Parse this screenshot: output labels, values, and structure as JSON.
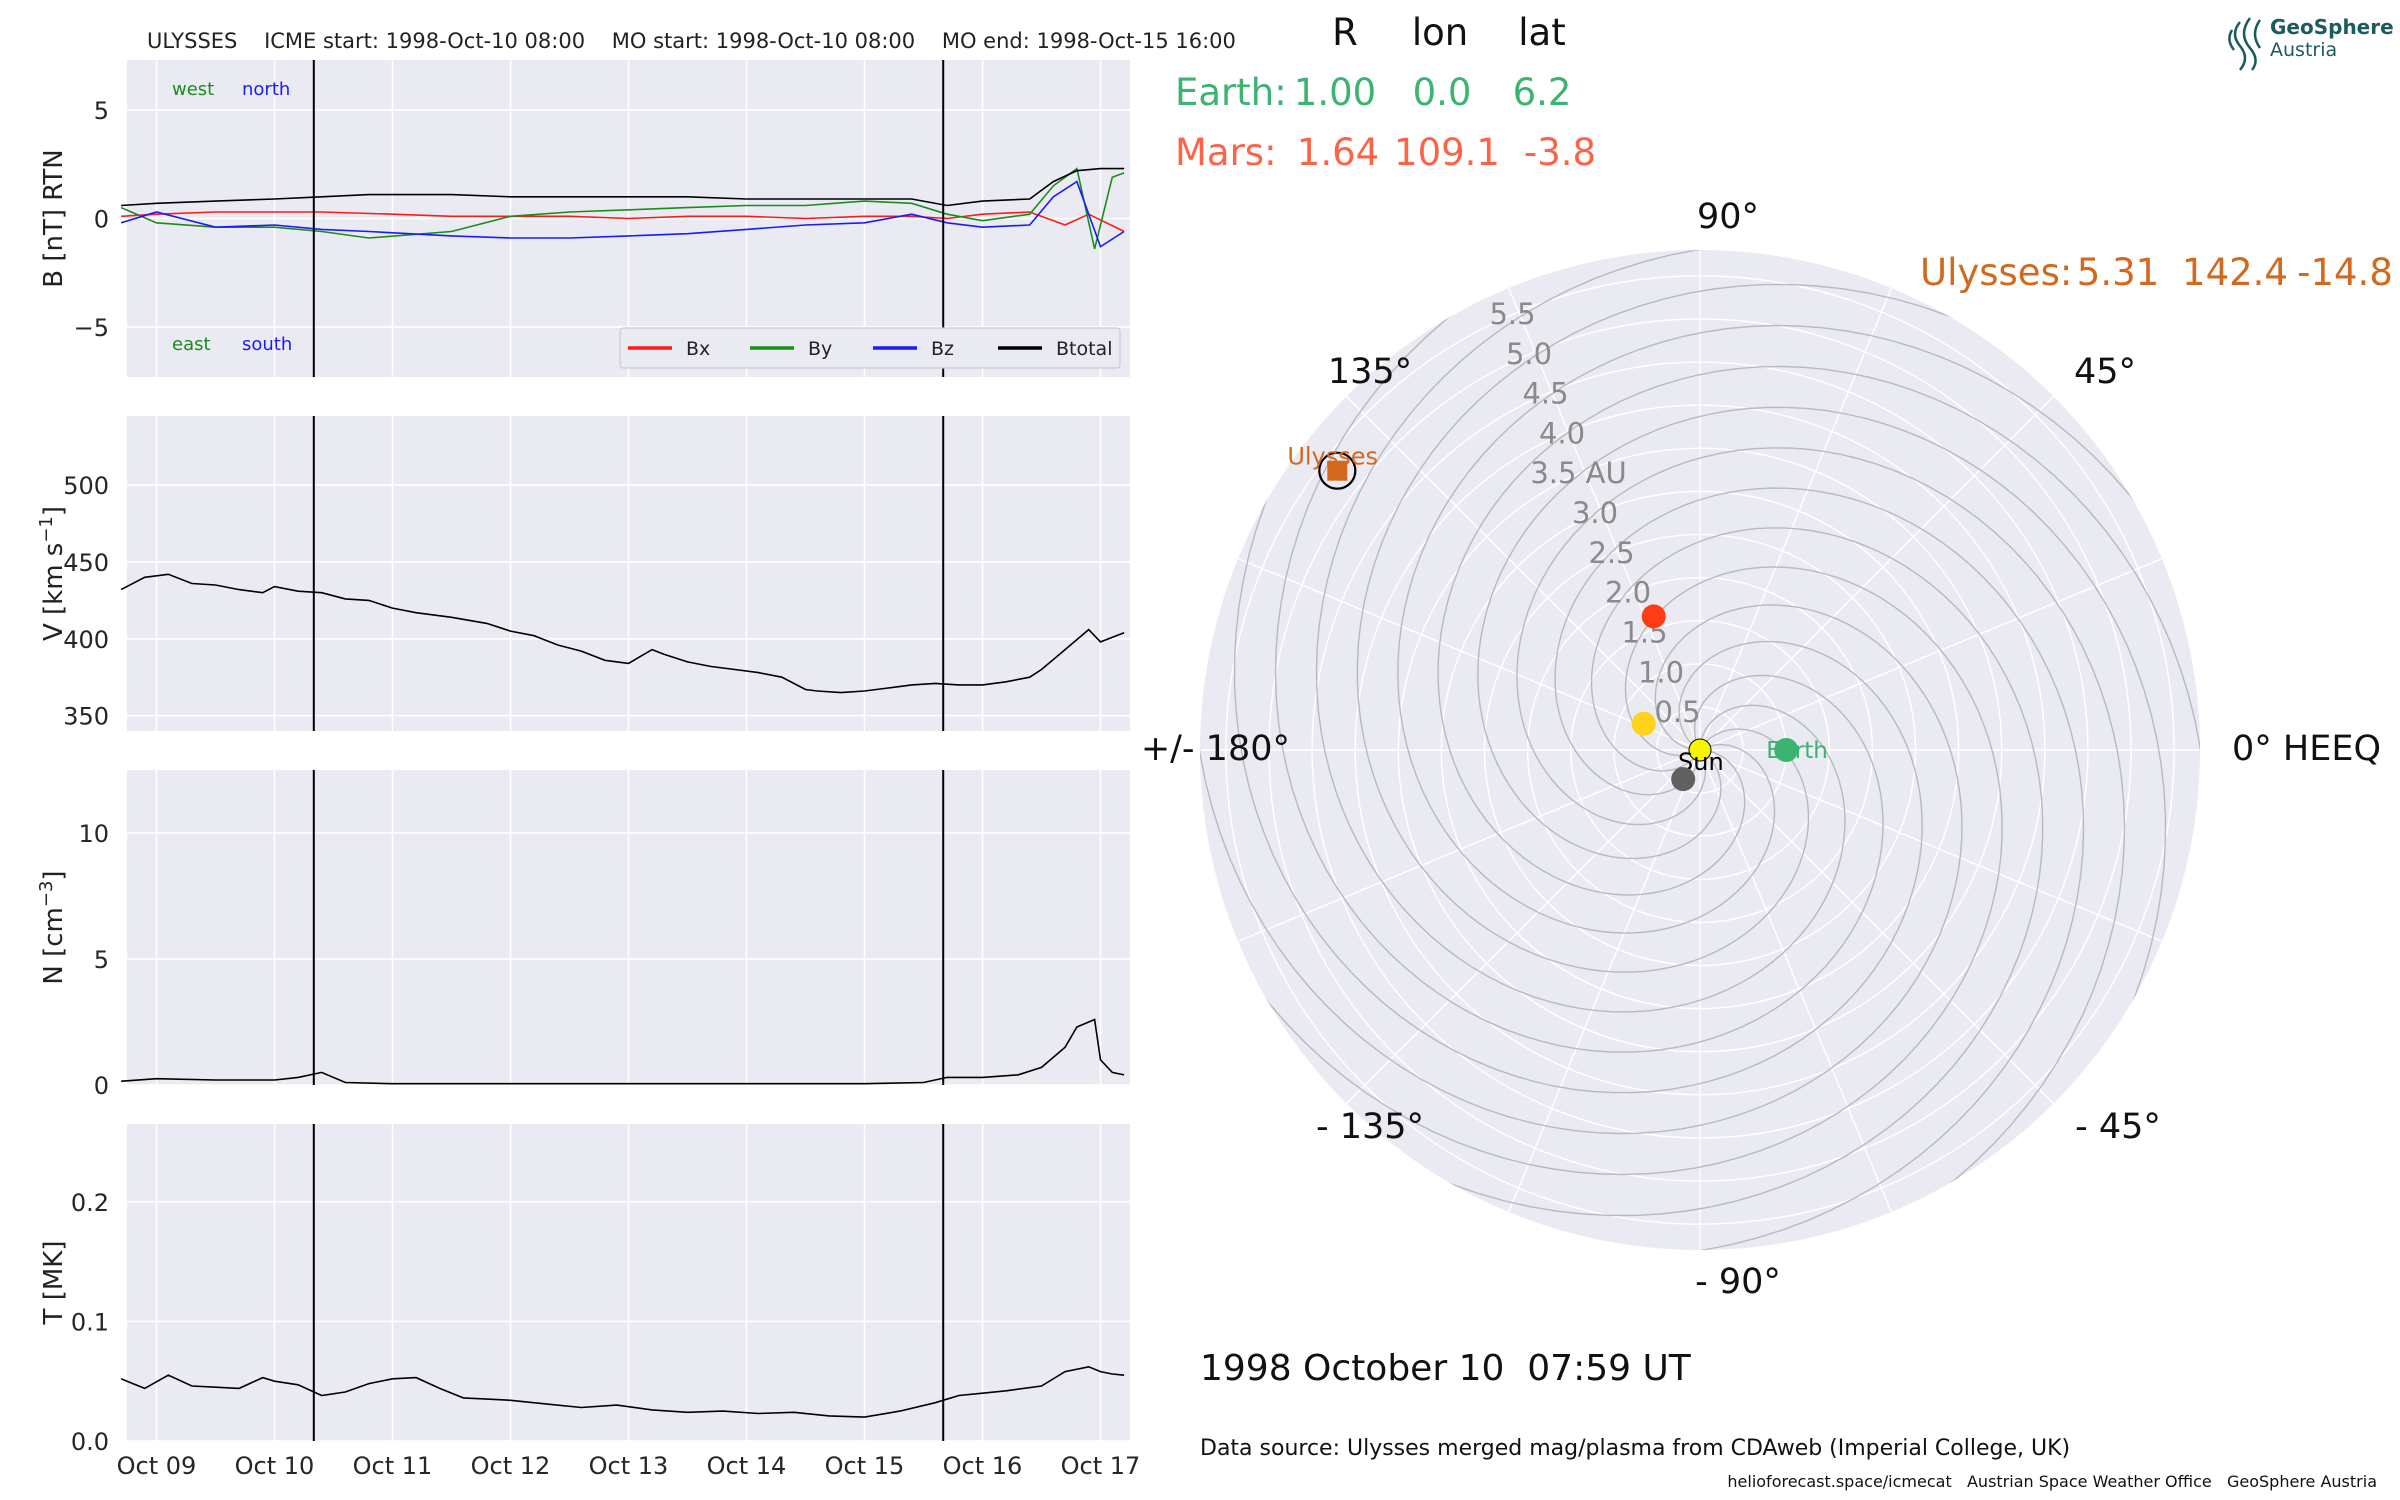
{
  "chart_data": [
    {
      "type": "line",
      "panel": "magnetic_field",
      "ylabel": "B [nT] RTN",
      "ylim": [
        -7.3,
        7.3
      ],
      "yticks": [
        5,
        0,
        -5
      ],
      "ytick_labels": [
        "5",
        "0",
        "−5"
      ],
      "annotations": {
        "west": "west",
        "north": "north",
        "east": "east",
        "south": "south"
      },
      "legend": {
        "placement": "lower-right"
      },
      "series": [
        {
          "name": "Bx",
          "color": "#ff1a1a",
          "x": [
            8.7,
            9.0,
            9.5,
            10.0,
            10.4,
            11.0,
            11.5,
            12.0,
            12.5,
            13.0,
            13.5,
            14.0,
            14.5,
            15.0,
            15.4,
            15.7,
            16.0,
            16.4,
            16.7,
            16.9,
            17.2
          ],
          "y": [
            0.1,
            0.2,
            0.3,
            0.3,
            0.3,
            0.2,
            0.1,
            0.1,
            0.1,
            0.0,
            0.1,
            0.1,
            0.0,
            0.1,
            0.1,
            0.0,
            0.2,
            0.3,
            -0.3,
            0.2,
            -0.6
          ]
        },
        {
          "name": "By",
          "color": "#1a8c1a",
          "x": [
            8.7,
            9.0,
            9.5,
            10.0,
            10.4,
            10.8,
            11.5,
            12.0,
            12.5,
            13.0,
            13.5,
            14.0,
            14.5,
            15.0,
            15.4,
            15.7,
            16.0,
            16.4,
            16.6,
            16.8,
            16.95,
            17.1,
            17.2
          ],
          "y": [
            0.5,
            -0.2,
            -0.4,
            -0.4,
            -0.6,
            -0.9,
            -0.6,
            0.1,
            0.3,
            0.4,
            0.5,
            0.6,
            0.6,
            0.8,
            0.7,
            0.2,
            -0.1,
            0.2,
            1.5,
            2.3,
            -1.4,
            1.9,
            2.1
          ]
        },
        {
          "name": "Bz",
          "color": "#1a1aff",
          "x": [
            8.7,
            9.0,
            9.5,
            10.0,
            10.4,
            10.8,
            11.5,
            12.0,
            12.5,
            13.0,
            13.5,
            14.0,
            14.5,
            15.0,
            15.4,
            15.7,
            16.0,
            16.4,
            16.6,
            16.8,
            17.0,
            17.2
          ],
          "y": [
            -0.2,
            0.3,
            -0.4,
            -0.3,
            -0.5,
            -0.6,
            -0.8,
            -0.9,
            -0.9,
            -0.8,
            -0.7,
            -0.5,
            -0.3,
            -0.2,
            0.2,
            -0.2,
            -0.4,
            -0.3,
            1.0,
            1.7,
            -1.3,
            -0.6
          ]
        },
        {
          "name": "Btotal",
          "color": "#000000",
          "x": [
            8.7,
            9.0,
            9.5,
            10.0,
            10.4,
            10.8,
            11.5,
            12.0,
            12.5,
            13.0,
            13.5,
            14.0,
            14.5,
            15.0,
            15.4,
            15.7,
            16.0,
            16.4,
            16.6,
            16.8,
            17.0,
            17.2
          ],
          "y": [
            0.6,
            0.7,
            0.8,
            0.9,
            1.0,
            1.1,
            1.1,
            1.0,
            1.0,
            1.0,
            1.0,
            0.9,
            0.9,
            0.9,
            0.9,
            0.6,
            0.8,
            0.9,
            1.7,
            2.2,
            2.3,
            2.3
          ]
        }
      ]
    },
    {
      "type": "line",
      "panel": "speed",
      "ylabel": "V [km s",
      "ylabel_sup": "−1",
      "ylim": [
        340,
        545
      ],
      "yticks": [
        500,
        450,
        400,
        350
      ],
      "ytick_labels": [
        "500",
        "450",
        "400",
        "350"
      ],
      "series": [
        {
          "name": "V",
          "color": "#000000",
          "x": [
            8.7,
            8.9,
            9.1,
            9.3,
            9.5,
            9.7,
            9.9,
            10.0,
            10.2,
            10.4,
            10.6,
            10.8,
            11.0,
            11.2,
            11.5,
            11.8,
            12.0,
            12.2,
            12.4,
            12.6,
            12.8,
            13.0,
            13.2,
            13.3,
            13.5,
            13.7,
            13.9,
            14.1,
            14.3,
            14.5,
            14.6,
            14.8,
            15.0,
            15.2,
            15.4,
            15.6,
            15.8,
            16.0,
            16.2,
            16.4,
            16.5,
            16.7,
            16.9,
            17.0,
            17.2
          ],
          "y": [
            432,
            440,
            442,
            436,
            435,
            432,
            430,
            434,
            431,
            430,
            426,
            425,
            420,
            417,
            414,
            410,
            405,
            402,
            396,
            392,
            386,
            384,
            393,
            390,
            385,
            382,
            380,
            378,
            375,
            367,
            366,
            365,
            366,
            368,
            370,
            371,
            370,
            370,
            372,
            375,
            380,
            393,
            406,
            398,
            404
          ]
        }
      ]
    },
    {
      "type": "line",
      "panel": "density",
      "ylabel": "N [cm",
      "ylabel_sup": "−3",
      "ylim": [
        0,
        12.5
      ],
      "yticks": [
        10,
        5,
        0
      ],
      "ytick_labels": [
        "10",
        "5",
        "0"
      ],
      "series": [
        {
          "name": "N",
          "color": "#000000",
          "x": [
            8.7,
            9.0,
            9.5,
            10.0,
            10.2,
            10.4,
            10.6,
            11.0,
            12.0,
            13.0,
            14.0,
            14.5,
            15.0,
            15.5,
            15.7,
            16.0,
            16.3,
            16.5,
            16.7,
            16.8,
            16.95,
            17.0,
            17.1,
            17.2
          ],
          "y": [
            0.15,
            0.25,
            0.2,
            0.2,
            0.3,
            0.5,
            0.1,
            0.05,
            0.05,
            0.05,
            0.05,
            0.05,
            0.05,
            0.1,
            0.3,
            0.3,
            0.4,
            0.7,
            1.5,
            2.3,
            2.6,
            1.0,
            0.5,
            0.4
          ]
        }
      ]
    },
    {
      "type": "line",
      "panel": "temperature",
      "ylabel": "T [MK]",
      "ylim": [
        0,
        0.265
      ],
      "yticks": [
        0.2,
        0.1,
        0.0
      ],
      "ytick_labels": [
        "0.2",
        "0.1",
        "0.0"
      ],
      "series": [
        {
          "name": "T",
          "color": "#000000",
          "x": [
            8.7,
            8.9,
            9.1,
            9.3,
            9.5,
            9.7,
            9.9,
            10.0,
            10.2,
            10.4,
            10.6,
            10.8,
            11.0,
            11.2,
            11.4,
            11.6,
            11.8,
            12.0,
            12.3,
            12.6,
            12.9,
            13.2,
            13.5,
            13.8,
            14.1,
            14.4,
            14.7,
            15.0,
            15.3,
            15.6,
            15.8,
            16.0,
            16.2,
            16.5,
            16.7,
            16.9,
            17.0,
            17.1,
            17.2
          ],
          "y": [
            0.052,
            0.044,
            0.055,
            0.046,
            0.045,
            0.044,
            0.053,
            0.05,
            0.047,
            0.038,
            0.041,
            0.048,
            0.052,
            0.053,
            0.044,
            0.036,
            0.035,
            0.034,
            0.031,
            0.028,
            0.03,
            0.026,
            0.024,
            0.025,
            0.023,
            0.024,
            0.021,
            0.02,
            0.025,
            0.032,
            0.038,
            0.04,
            0.042,
            0.046,
            0.058,
            0.062,
            0.058,
            0.056,
            0.055
          ]
        }
      ]
    },
    {
      "type": "scatter",
      "panel": "polar_positions",
      "projection": "polar",
      "rlim": [
        0,
        5.8
      ],
      "r_ticks": [
        0.5,
        1.0,
        1.5,
        2.0,
        2.5,
        3.0,
        3.5,
        4.0,
        4.5,
        5.0,
        5.5
      ],
      "r_tick_labels": [
        "0.5",
        "1.0",
        "1.5",
        "2.0",
        "2.5",
        "3.0",
        "3.5 AU",
        "4.0",
        "4.5",
        "5.0",
        "5.5"
      ],
      "theta_labels": [
        "0° HEEQ",
        "45°",
        "90°",
        "135°",
        "+/- 180°",
        "- 135°",
        "- 90°",
        "- 45°"
      ],
      "points": [
        {
          "name": "Sun",
          "r": 0.0,
          "lon": 0.0,
          "color": "#f5f500"
        },
        {
          "name": "Earth",
          "r": 1.0,
          "lon": 0.0,
          "color": "#3cb371"
        },
        {
          "name": "Mars",
          "r": 1.64,
          "lon": 109.1,
          "color": "#ff3c14"
        },
        {
          "name": "Ulysses",
          "r": 5.31,
          "lon": 142.4,
          "color": "#d2691e"
        },
        {
          "name": "",
          "r": 0.72,
          "lon": 155.0,
          "color": "#ffd21e"
        },
        {
          "name": "",
          "r": 0.39,
          "lon": 240.0,
          "color": "#606060"
        }
      ]
    }
  ],
  "x_axis": {
    "xlim": [
      8.75,
      17.25
    ],
    "tick_positions": [
      9,
      10,
      11,
      12,
      13,
      14,
      15,
      16,
      17
    ],
    "tick_labels": [
      "Oct 09",
      "Oct 10",
      "Oct 11",
      "Oct 12",
      "Oct 13",
      "Oct 14",
      "Oct 15",
      "Oct 16",
      "Oct 17"
    ],
    "event_lines": [
      10.333,
      15.667
    ]
  },
  "header_text": "ULYSSES    ICME start: 1998-Oct-10 08:00    MO start: 1998-Oct-10 08:00    MO end: 1998-Oct-15 16:00",
  "table": {
    "headers": [
      "R",
      "lon",
      "lat"
    ],
    "earth": {
      "label": "Earth:",
      "r": "1.00",
      "lon": "0.0",
      "lat": "6.2",
      "color": "#3cb371"
    },
    "mars": {
      "label": "Mars:",
      "r": "1.64",
      "lon": "109.1",
      "lat": "-3.8",
      "color": "#ff6347"
    },
    "ulysses": {
      "label": "Ulysses:",
      "r": "5.31",
      "lon": "142.4",
      "lat": "-14.8",
      "color": "#d2691e"
    }
  },
  "legend_labels": [
    "Bx",
    "By",
    "Bz",
    "Btotal"
  ],
  "polar_labels": {
    "ulysses": "Ulysses",
    "sun": "Sun",
    "earth": "Earth"
  },
  "date_text": "1998 October 10  07:59 UT",
  "source_text": "Data source: Ulysses merged mag/plasma from CDAweb (Imperial College, UK)",
  "footer_text": "helioforecast.space/icmecat   Austrian Space Weather Office   GeoSphere Austria",
  "logo": {
    "name": "GeoSphere",
    "sub": "Austria",
    "icon": "geosphere-swirl-icon"
  },
  "colors": {
    "panel_bg": "#eaeaf2",
    "grid": "#ffffff",
    "earth": "#3cb371",
    "mars": "#ff6347",
    "ulysses": "#d2691e"
  }
}
